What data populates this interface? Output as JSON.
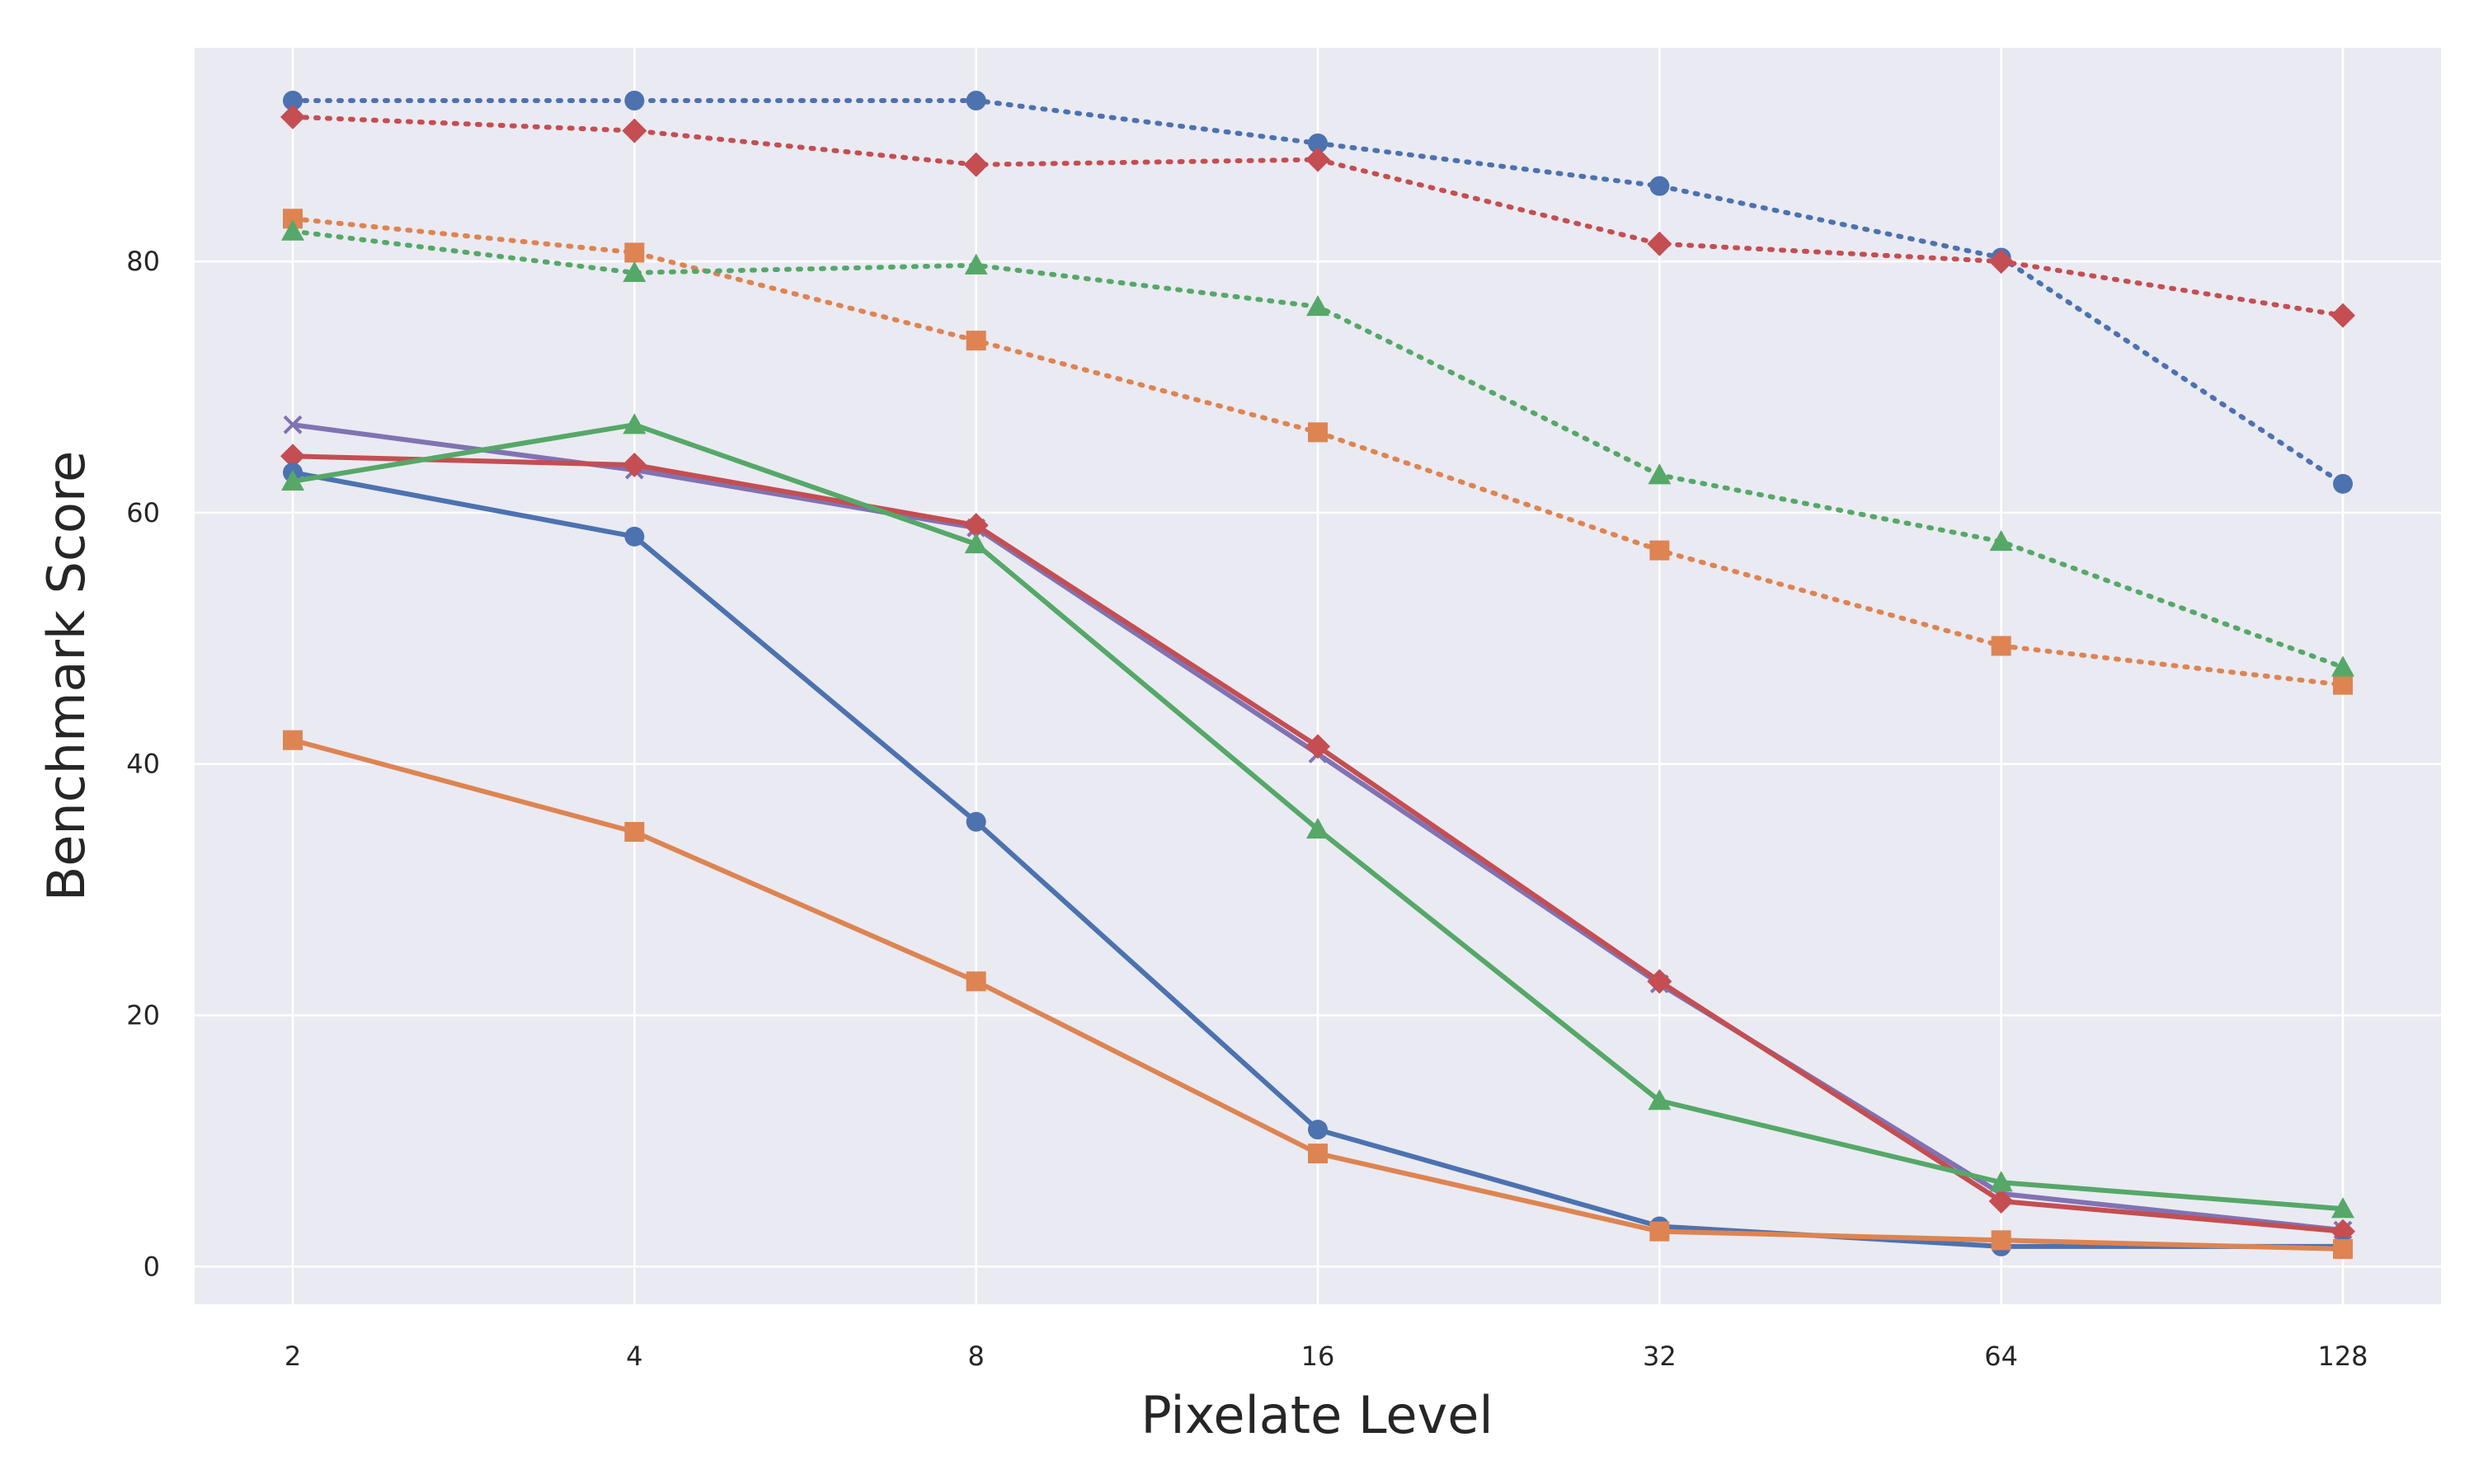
{
  "chart_data": {
    "type": "line",
    "title": "",
    "xlabel": "Pixelate Level",
    "ylabel": "Benchmark Score",
    "x_scale": "log2",
    "x": [
      2,
      4,
      8,
      16,
      32,
      64,
      128
    ],
    "x_tick_labels": [
      "2",
      "4",
      "8",
      "16",
      "32",
      "64",
      "128"
    ],
    "ylim": [
      -3,
      97
    ],
    "y_ticks": [
      0,
      20,
      40,
      60,
      80
    ],
    "y_tick_labels": [
      "0",
      "20",
      "40",
      "60",
      "80"
    ],
    "grid": true,
    "background": "#EAEAF2",
    "series": [
      {
        "name": "blue-dotted",
        "color": "#4C72B0",
        "style": "dotted",
        "marker": "circle",
        "values": [
          92.8,
          92.8,
          92.8,
          89.4,
          86.0,
          80.3,
          62.3
        ]
      },
      {
        "name": "red-dotted",
        "color": "#C44E52",
        "style": "dotted",
        "marker": "diamond",
        "values": [
          91.5,
          90.4,
          87.7,
          88.1,
          81.4,
          80.0,
          75.7
        ]
      },
      {
        "name": "orange-dotted",
        "color": "#DD8452",
        "style": "dotted",
        "marker": "square",
        "values": [
          83.4,
          80.7,
          73.7,
          66.4,
          57.0,
          49.4,
          46.3
        ]
      },
      {
        "name": "green-dotted",
        "color": "#55A868",
        "style": "dotted",
        "marker": "triangle",
        "values": [
          82.4,
          79.1,
          79.7,
          76.4,
          63.0,
          57.7,
          47.7
        ]
      },
      {
        "name": "purple-solid",
        "color": "#8172B3",
        "style": "solid",
        "marker": "x",
        "values": [
          67.0,
          63.4,
          58.8,
          40.8,
          22.5,
          5.8,
          2.9
        ]
      },
      {
        "name": "red-solid",
        "color": "#C44E52",
        "style": "solid",
        "marker": "diamond",
        "values": [
          64.5,
          63.8,
          59.0,
          41.4,
          22.7,
          5.2,
          2.8
        ]
      },
      {
        "name": "blue-solid",
        "color": "#4C72B0",
        "style": "solid",
        "marker": "circle",
        "values": [
          63.2,
          58.1,
          35.4,
          10.9,
          3.2,
          1.6,
          1.6
        ]
      },
      {
        "name": "green-solid",
        "color": "#55A868",
        "style": "solid",
        "marker": "triangle",
        "values": [
          62.5,
          67.0,
          57.5,
          34.8,
          13.2,
          6.7,
          4.6
        ]
      },
      {
        "name": "orange-solid",
        "color": "#DD8452",
        "style": "solid",
        "marker": "square",
        "values": [
          41.9,
          34.6,
          22.7,
          9.0,
          2.8,
          2.1,
          1.4
        ]
      }
    ]
  }
}
